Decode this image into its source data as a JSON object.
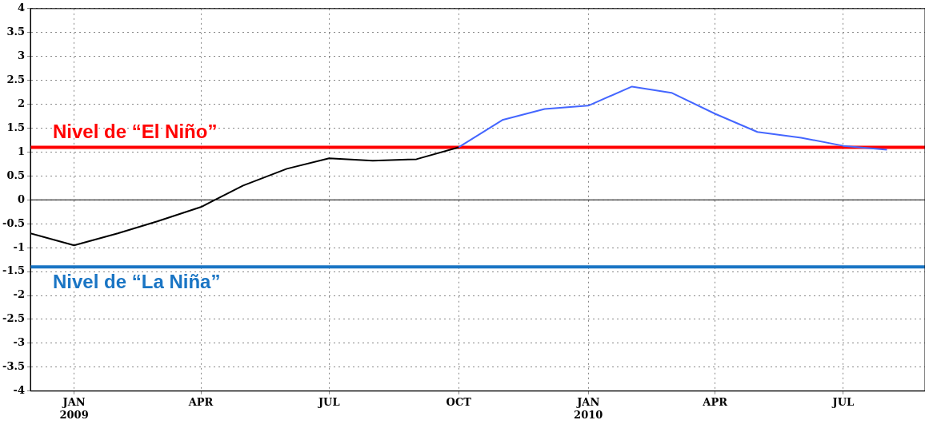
{
  "chart_data": {
    "type": "line",
    "series": [
      {
        "color": "#000000",
        "x": [
          "2008-12-01",
          "2009-01-01",
          "2009-02-01",
          "2009-03-01",
          "2009-04-01",
          "2009-05-01",
          "2009-06-01",
          "2009-07-01",
          "2009-08-01",
          "2009-09-01",
          "2009-10-01"
        ],
        "values": [
          -0.7,
          -0.95,
          -0.7,
          -0.45,
          -0.15,
          0.3,
          0.65,
          0.87,
          0.82,
          0.85,
          1.1
        ]
      },
      {
        "color": "#4466ff",
        "x": [
          "2009-10-01",
          "2009-11-01",
          "2009-12-01",
          "2010-01-01",
          "2010-02-01",
          "2010-03-01",
          "2010-04-01",
          "2010-05-01",
          "2010-06-01",
          "2010-07-01",
          "2010-08-01"
        ],
        "values": [
          1.1,
          1.67,
          1.9,
          1.97,
          2.37,
          2.24,
          1.8,
          1.42,
          1.3,
          1.13,
          1.05
        ]
      }
    ],
    "xlim": [
      "2008-12-01",
      "2010-08-28"
    ],
    "xticks": [
      {
        "value": "2009-01-01",
        "label": "JAN\n2009"
      },
      {
        "value": "2009-04-01",
        "label": "APR"
      },
      {
        "value": "2009-07-01",
        "label": "JUL"
      },
      {
        "value": "2009-10-01",
        "label": "OCT"
      },
      {
        "value": "2010-01-01",
        "label": "JAN\n2010"
      },
      {
        "value": "2010-04-01",
        "label": "APR"
      },
      {
        "value": "2010-07-01",
        "label": "JUL"
      }
    ],
    "ylim": [
      -4,
      4
    ],
    "yticks": [
      -4,
      -3.5,
      -3,
      -2.5,
      -2,
      -1.5,
      -1,
      -0.5,
      0,
      0.5,
      1,
      1.5,
      2,
      2.5,
      3,
      3.5,
      4
    ],
    "ref_lines": [
      {
        "axis": "y",
        "value": 1.1,
        "label": "Nivel de “El Niño”",
        "color": "#ff0000"
      },
      {
        "axis": "y",
        "value": -1.4,
        "label": "Nivel de “La Niña”",
        "color": "#1a75c4"
      },
      {
        "axis": "y",
        "value": 0,
        "color": "#000000"
      }
    ],
    "grid": true,
    "legend": false,
    "marker": "none",
    "line_style": "solid"
  }
}
